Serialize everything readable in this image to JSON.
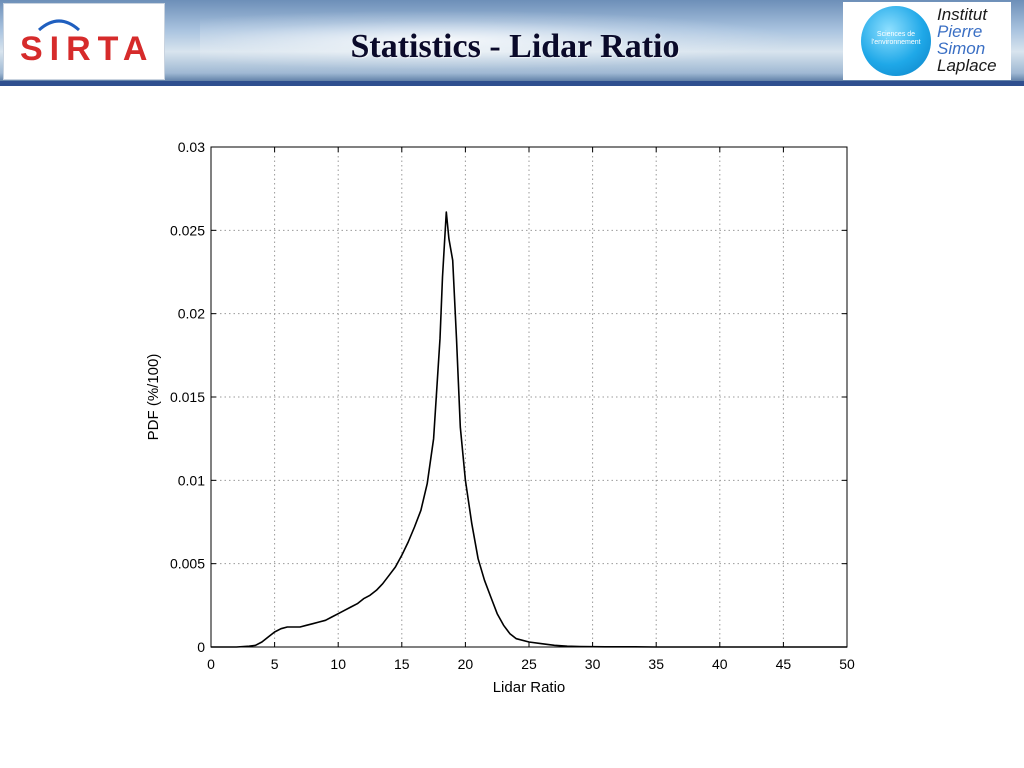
{
  "header": {
    "left_logo_text": "SIRTA",
    "title": "Statistics - Lidar Ratio",
    "right_logo": {
      "circle_line1": "Sciences de",
      "circle_line2": "l'environnement",
      "name_lines": [
        "Institut",
        "Pierre",
        "Simon",
        "Laplace"
      ]
    },
    "colors": {
      "sirta_red": "#d62b2b",
      "ipsl_blue": "#1fa8e8",
      "banner_border": "#2f4f8f"
    }
  },
  "chart_data": {
    "type": "line",
    "xlabel": "Lidar Ratio",
    "ylabel": "PDF (%/100)",
    "xlim": [
      0,
      50
    ],
    "ylim": [
      0,
      0.03
    ],
    "xticks": [
      0,
      5,
      10,
      15,
      20,
      25,
      30,
      35,
      40,
      45,
      50
    ],
    "yticks": [
      0,
      0.005,
      0.01,
      0.015,
      0.02,
      0.025,
      0.03
    ],
    "ytick_labels": [
      "0",
      "0.005",
      "0.01",
      "0.015",
      "0.02",
      "0.025",
      "0.03"
    ],
    "grid": true,
    "line_color": "#000000",
    "series": [
      {
        "x": [
          0,
          2,
          3,
          3.5,
          4,
          4.5,
          5,
          5.5,
          6,
          6.5,
          7,
          7.5,
          8,
          8.5,
          9,
          9.5,
          10,
          10.5,
          11,
          11.5,
          12,
          12.5,
          13,
          13.5,
          14,
          14.5,
          15,
          15.5,
          16,
          16.5,
          17,
          17.5,
          18,
          18.2,
          18.5,
          18.7,
          19,
          19.3,
          19.6,
          20,
          20.5,
          21,
          21.5,
          22,
          22.5,
          23,
          23.5,
          24,
          25,
          26,
          27,
          28,
          29,
          30,
          31,
          32,
          33,
          35,
          50
        ],
        "y": [
          0,
          0,
          5e-05,
          0.0001,
          0.0003,
          0.0006,
          0.0009,
          0.0011,
          0.0012,
          0.0012,
          0.0012,
          0.0013,
          0.0014,
          0.0015,
          0.0016,
          0.0018,
          0.002,
          0.0022,
          0.0024,
          0.0026,
          0.0029,
          0.0031,
          0.0034,
          0.0038,
          0.0043,
          0.0048,
          0.0055,
          0.0063,
          0.0072,
          0.0082,
          0.0098,
          0.0125,
          0.0185,
          0.0222,
          0.0261,
          0.0245,
          0.0232,
          0.0185,
          0.0132,
          0.01,
          0.0074,
          0.0053,
          0.004,
          0.003,
          0.002,
          0.0013,
          0.0008,
          0.0005,
          0.0003,
          0.0002,
          0.0001,
          5e-05,
          3e-05,
          2e-05,
          1e-05,
          1e-05,
          1e-05,
          0,
          0
        ]
      }
    ]
  }
}
